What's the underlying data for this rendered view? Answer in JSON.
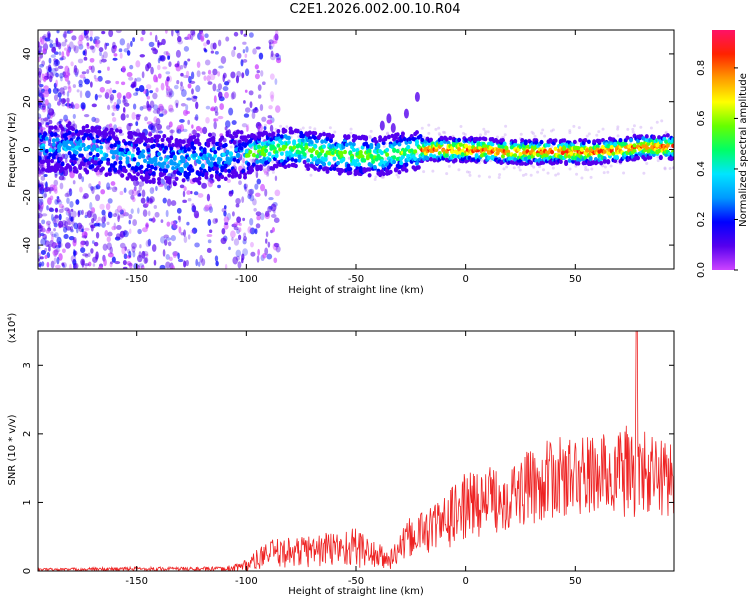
{
  "page_title": "C2E1.2026.002.00.10.R04",
  "colors": {
    "snr_line": "#ee2222",
    "axis": "#000000",
    "colorbar": [
      "#cc44ff",
      "#5500ee",
      "#0000ff",
      "#0099ff",
      "#00e5ff",
      "#00ff66",
      "#66ff00",
      "#ffff00",
      "#ff9900",
      "#ff2200",
      "#ff1166"
    ]
  },
  "chart_data": [
    {
      "type": "heatmap",
      "title": "C2E1.2026.002.00.10.R04",
      "xlabel": "Height of straight line (km)",
      "ylabel": "Frequency (Hz)",
      "xlim": [
        -195,
        95
      ],
      "ylim": [
        -50,
        50
      ],
      "xticks": [
        -150,
        -100,
        -50,
        0,
        50
      ],
      "yticks": [
        -40,
        -20,
        0,
        20,
        40
      ],
      "colorbar": {
        "label": "Normalized spectral amplitude",
        "range": [
          0.0,
          0.95
        ],
        "ticks": [
          "0.0",
          "0.2",
          "0.4",
          "0.6",
          "0.8"
        ]
      },
      "ridge_center_hz": [
        {
          "x": -180,
          "y": 1
        },
        {
          "x": -150,
          "y": -3
        },
        {
          "x": -130,
          "y": -5
        },
        {
          "x": -100,
          "y": -2
        },
        {
          "x": -80,
          "y": 1
        },
        {
          "x": -60,
          "y": -2
        },
        {
          "x": -40,
          "y": -3
        },
        {
          "x": -20,
          "y": 0
        },
        {
          "x": 0,
          "y": 0
        },
        {
          "x": 20,
          "y": -1
        },
        {
          "x": 40,
          "y": -1
        },
        {
          "x": 60,
          "y": -1
        },
        {
          "x": 80,
          "y": 1
        },
        {
          "x": 93,
          "y": 1
        }
      ]
    },
    {
      "type": "line",
      "xlabel": "Height of straight line (km)",
      "ylabel": "SNR (10 * v/v)",
      "scale_label": "(x10⁴)",
      "xlim": [
        -195,
        95
      ],
      "ylim": [
        0,
        3.5
      ],
      "xticks": [
        -150,
        -100,
        -50,
        0,
        50
      ],
      "yticks": [
        0,
        1,
        2,
        3
      ],
      "series": [
        {
          "name": "SNR",
          "envelope": [
            {
              "x": -195,
              "mean": 0.02,
              "amp": 0.02
            },
            {
              "x": -150,
              "mean": 0.03,
              "amp": 0.03
            },
            {
              "x": -110,
              "mean": 0.03,
              "amp": 0.03
            },
            {
              "x": -100,
              "mean": 0.08,
              "amp": 0.1
            },
            {
              "x": -90,
              "mean": 0.25,
              "amp": 0.2
            },
            {
              "x": -70,
              "mean": 0.3,
              "amp": 0.25
            },
            {
              "x": -50,
              "mean": 0.35,
              "amp": 0.3
            },
            {
              "x": -35,
              "mean": 0.15,
              "amp": 0.15
            },
            {
              "x": -25,
              "mean": 0.5,
              "amp": 0.3
            },
            {
              "x": -10,
              "mean": 0.7,
              "amp": 0.4
            },
            {
              "x": 0,
              "mean": 0.95,
              "amp": 0.5
            },
            {
              "x": 20,
              "mean": 1.1,
              "amp": 0.5
            },
            {
              "x": 40,
              "mean": 1.35,
              "amp": 0.6
            },
            {
              "x": 60,
              "mean": 1.4,
              "amp": 0.6
            },
            {
              "x": 75,
              "mean": 1.45,
              "amp": 0.7
            },
            {
              "x": 85,
              "mean": 1.4,
              "amp": 0.6
            },
            {
              "x": 95,
              "mean": 1.35,
              "amp": 0.6
            }
          ],
          "peak": {
            "x": 78,
            "y": 3.5
          }
        }
      ]
    }
  ]
}
